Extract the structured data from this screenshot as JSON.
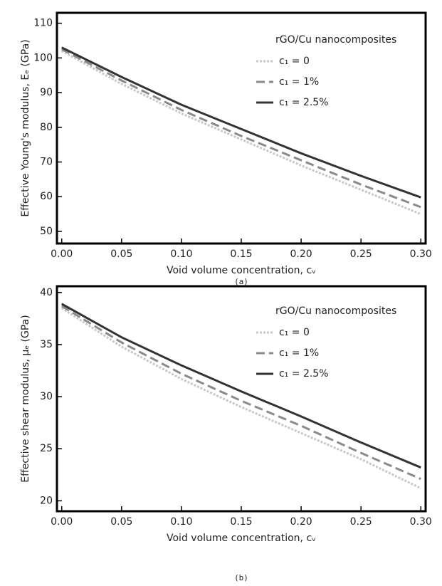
{
  "chart_data": [
    {
      "type": "line",
      "caption": "(a)",
      "x_label": "Void volume concentration, cᵥ",
      "y_label": "Effective Young's modulus, Eₑ (GPa)",
      "legend_title": "rGO/Cu nanocomposites",
      "x": [
        0,
        0.05,
        0.1,
        0.15,
        0.2,
        0.25,
        0.3
      ],
      "xlim": [
        -0.004,
        0.304
      ],
      "xticks": [
        {
          "value": 0,
          "label": "0.00"
        },
        0.05,
        {
          "value": 0.1,
          "label": "0.10"
        },
        0.15,
        {
          "value": 0.2,
          "label": "0.20"
        },
        0.25,
        {
          "value": 0.3,
          "label": "0.30"
        }
      ],
      "ylim": [
        46.5,
        113
      ],
      "yticks": [
        50,
        60,
        70,
        80,
        90,
        100,
        110
      ],
      "series": [
        {
          "name": "c₁ = 0",
          "color": "#c8c8c8",
          "dash": "dotted",
          "values": [
            102,
            92.5,
            84,
            76.5,
            69,
            62,
            55
          ]
        },
        {
          "name": "c₁ = 1%",
          "color": "#8a8a8a",
          "dash": "dashed",
          "values": [
            102.5,
            93.5,
            85,
            77.5,
            70.5,
            63.5,
            57
          ]
        },
        {
          "name": "c₁ = 2.5%",
          "color": "#333333",
          "dash": "solid",
          "values": [
            103,
            94.5,
            86.5,
            79.5,
            72.5,
            66,
            59.8
          ]
        }
      ]
    },
    {
      "type": "line",
      "caption": "(b)",
      "x_label": "Void volume concentration, cᵥ",
      "y_label": "Effective shear modulus, μₑ (GPa)",
      "legend_title": "rGO/Cu nanocomposites",
      "x": [
        0,
        0.05,
        0.1,
        0.15,
        0.2,
        0.25,
        0.3
      ],
      "xlim": [
        -0.004,
        0.304
      ],
      "xticks": [
        {
          "value": 0,
          "label": "0.00"
        },
        0.05,
        {
          "value": 0.1,
          "label": "0.10"
        },
        0.15,
        {
          "value": 0.2,
          "label": "0.20"
        },
        0.25,
        {
          "value": 0.3,
          "label": "0.30"
        }
      ],
      "ylim": [
        19,
        40.6
      ],
      "yticks": [
        20,
        25,
        30,
        35,
        40
      ],
      "series": [
        {
          "name": "c₁ = 0",
          "color": "#c8c8c8",
          "dash": "dotted",
          "values": [
            38.5,
            34.8,
            31.7,
            29.0,
            26.5,
            24.0,
            21.2
          ]
        },
        {
          "name": "c₁ = 1%",
          "color": "#8a8a8a",
          "dash": "dashed",
          "values": [
            38.7,
            35.2,
            32.2,
            29.6,
            27.2,
            24.6,
            22.1
          ]
        },
        {
          "name": "c₁ = 2.5%",
          "color": "#333333",
          "dash": "solid",
          "values": [
            38.9,
            35.7,
            33.0,
            30.5,
            28.1,
            25.6,
            23.2
          ]
        }
      ]
    }
  ]
}
